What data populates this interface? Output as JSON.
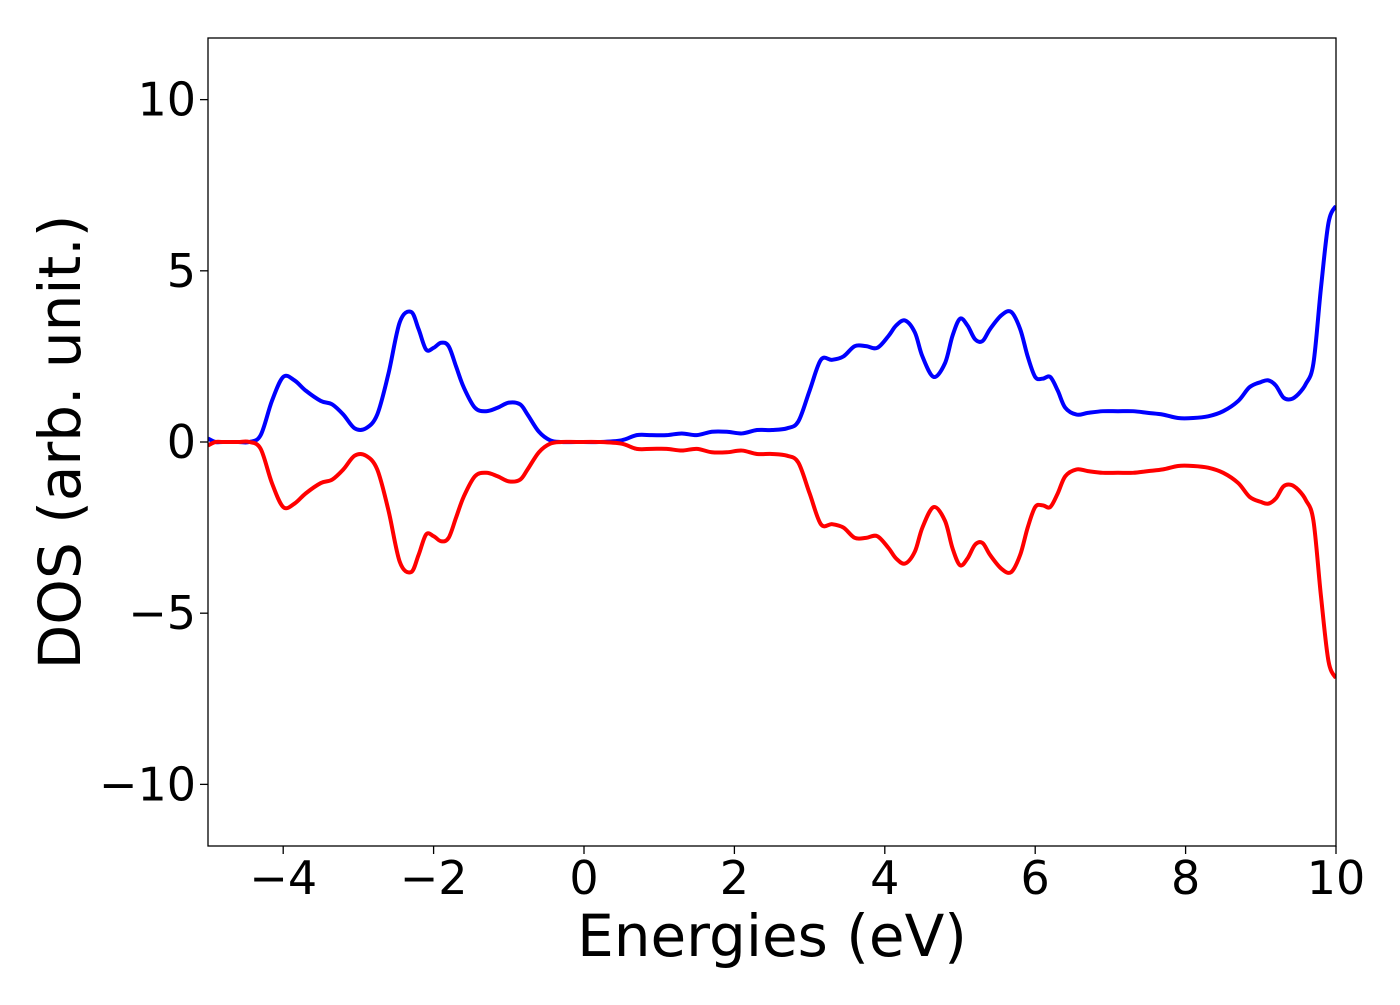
{
  "chart_data": {
    "type": "line",
    "title": "",
    "xlabel": "Energies (eV)",
    "ylabel": "DOS (arb. unit.)",
    "xlim": [
      -5,
      10
    ],
    "ylim": [
      -11.8,
      11.8
    ],
    "xticks": [
      -4,
      -2,
      0,
      2,
      4,
      6,
      8,
      10
    ],
    "xtick_labels": [
      "−4",
      "−2",
      "0",
      "2",
      "4",
      "6",
      "8",
      "10"
    ],
    "yticks": [
      10,
      5,
      0,
      -5,
      -10
    ],
    "ytick_labels": [
      "10",
      "5",
      "0",
      "−5",
      "−10"
    ],
    "grid": false,
    "legend": false,
    "series": [
      {
        "color": "#0000ff",
        "x": [
          -5.0,
          -4.9,
          -4.8,
          -4.6,
          -4.45,
          -4.3,
          -4.15,
          -4.0,
          -3.85,
          -3.7,
          -3.5,
          -3.35,
          -3.2,
          -3.05,
          -2.9,
          -2.75,
          -2.6,
          -2.45,
          -2.3,
          -2.2,
          -2.1,
          -2.0,
          -1.9,
          -1.8,
          -1.7,
          -1.6,
          -1.45,
          -1.3,
          -1.15,
          -1.0,
          -0.85,
          -0.75,
          -0.6,
          -0.45,
          -0.3,
          -0.1,
          0.2,
          0.5,
          0.7,
          0.9,
          1.1,
          1.3,
          1.5,
          1.7,
          1.9,
          2.1,
          2.3,
          2.5,
          2.7,
          2.85,
          3.0,
          3.15,
          3.3,
          3.45,
          3.6,
          3.75,
          3.9,
          4.05,
          4.15,
          4.27,
          4.4,
          4.5,
          4.65,
          4.8,
          4.9,
          5.0,
          5.1,
          5.2,
          5.3,
          5.4,
          5.55,
          5.68,
          5.8,
          5.9,
          6.0,
          6.1,
          6.2,
          6.3,
          6.4,
          6.55,
          6.7,
          6.9,
          7.1,
          7.3,
          7.5,
          7.7,
          7.9,
          8.1,
          8.3,
          8.5,
          8.7,
          8.85,
          9.0,
          9.1,
          9.2,
          9.3,
          9.4,
          9.5,
          9.6,
          9.7,
          9.8,
          9.9,
          10.0
        ],
        "y": [
          0.1,
          0.0,
          0.0,
          0.0,
          0.0,
          0.2,
          1.2,
          1.9,
          1.8,
          1.5,
          1.2,
          1.1,
          0.8,
          0.4,
          0.4,
          0.8,
          2.0,
          3.5,
          3.8,
          3.3,
          2.7,
          2.75,
          2.9,
          2.8,
          2.2,
          1.6,
          1.0,
          0.9,
          1.0,
          1.15,
          1.1,
          0.8,
          0.3,
          0.05,
          0.0,
          0.0,
          0.0,
          0.05,
          0.2,
          0.2,
          0.2,
          0.25,
          0.2,
          0.3,
          0.3,
          0.25,
          0.35,
          0.35,
          0.4,
          0.6,
          1.5,
          2.4,
          2.4,
          2.5,
          2.8,
          2.8,
          2.75,
          3.1,
          3.4,
          3.55,
          3.2,
          2.5,
          1.9,
          2.3,
          3.1,
          3.6,
          3.4,
          3.0,
          2.95,
          3.3,
          3.7,
          3.8,
          3.3,
          2.5,
          1.9,
          1.85,
          1.9,
          1.5,
          1.0,
          0.8,
          0.85,
          0.9,
          0.9,
          0.9,
          0.85,
          0.8,
          0.7,
          0.7,
          0.75,
          0.9,
          1.2,
          1.6,
          1.75,
          1.8,
          1.65,
          1.3,
          1.25,
          1.4,
          1.7,
          2.3,
          4.5,
          6.4,
          6.9
        ]
      },
      {
        "color": "#ff0000",
        "x": [
          -5.0,
          -4.9,
          -4.8,
          -4.6,
          -4.45,
          -4.3,
          -4.15,
          -4.0,
          -3.85,
          -3.7,
          -3.5,
          -3.35,
          -3.2,
          -3.05,
          -2.9,
          -2.75,
          -2.6,
          -2.45,
          -2.3,
          -2.2,
          -2.1,
          -2.0,
          -1.9,
          -1.8,
          -1.7,
          -1.6,
          -1.45,
          -1.3,
          -1.15,
          -1.0,
          -0.85,
          -0.75,
          -0.6,
          -0.45,
          -0.3,
          -0.1,
          0.2,
          0.5,
          0.7,
          0.9,
          1.1,
          1.3,
          1.5,
          1.7,
          1.9,
          2.1,
          2.3,
          2.5,
          2.7,
          2.85,
          3.0,
          3.15,
          3.3,
          3.45,
          3.6,
          3.75,
          3.9,
          4.05,
          4.15,
          4.27,
          4.4,
          4.5,
          4.65,
          4.8,
          4.9,
          5.0,
          5.1,
          5.2,
          5.3,
          5.4,
          5.55,
          5.68,
          5.8,
          5.9,
          6.0,
          6.1,
          6.2,
          6.3,
          6.4,
          6.55,
          6.7,
          6.9,
          7.1,
          7.3,
          7.5,
          7.7,
          7.9,
          8.1,
          8.3,
          8.5,
          8.7,
          8.85,
          9.0,
          9.1,
          9.2,
          9.3,
          9.4,
          9.5,
          9.6,
          9.7,
          9.8,
          9.9,
          10.0
        ],
        "y": [
          -0.1,
          0.0,
          0.0,
          0.0,
          0.0,
          -0.2,
          -1.2,
          -1.9,
          -1.8,
          -1.5,
          -1.2,
          -1.1,
          -0.8,
          -0.4,
          -0.4,
          -0.8,
          -2.0,
          -3.5,
          -3.8,
          -3.3,
          -2.7,
          -2.75,
          -2.9,
          -2.8,
          -2.2,
          -1.6,
          -1.0,
          -0.9,
          -1.0,
          -1.15,
          -1.1,
          -0.8,
          -0.3,
          -0.05,
          0.0,
          0.0,
          0.0,
          -0.05,
          -0.2,
          -0.2,
          -0.2,
          -0.25,
          -0.2,
          -0.3,
          -0.3,
          -0.25,
          -0.35,
          -0.35,
          -0.4,
          -0.6,
          -1.5,
          -2.4,
          -2.4,
          -2.5,
          -2.8,
          -2.8,
          -2.75,
          -3.1,
          -3.4,
          -3.55,
          -3.2,
          -2.5,
          -1.9,
          -2.3,
          -3.1,
          -3.6,
          -3.4,
          -3.0,
          -2.95,
          -3.3,
          -3.7,
          -3.8,
          -3.3,
          -2.5,
          -1.9,
          -1.85,
          -1.9,
          -1.5,
          -1.0,
          -0.8,
          -0.85,
          -0.9,
          -0.9,
          -0.9,
          -0.85,
          -0.8,
          -0.7,
          -0.7,
          -0.75,
          -0.9,
          -1.2,
          -1.6,
          -1.75,
          -1.8,
          -1.65,
          -1.3,
          -1.25,
          -1.4,
          -1.7,
          -2.3,
          -4.5,
          -6.4,
          -6.9
        ]
      }
    ]
  }
}
